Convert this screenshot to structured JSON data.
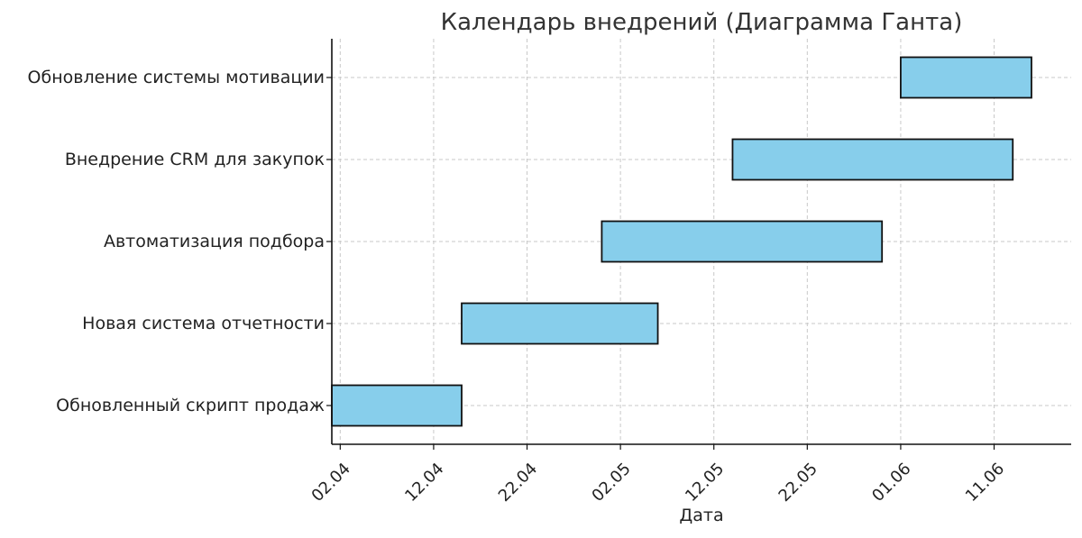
{
  "chart_data": {
    "type": "gantt",
    "title": "Календарь внедрений (Диаграмма Ганта)",
    "xlabel": "Дата",
    "ylabel": "",
    "bar_color": "#87ceeb",
    "bar_edge_color": "#111111",
    "grid": true,
    "x_axis": {
      "type": "date",
      "range": [
        "2024-04-01",
        "2024-06-18"
      ],
      "ticks": [
        {
          "date": "2024-04-02",
          "label": "02.04"
        },
        {
          "date": "2024-04-12",
          "label": "12.04"
        },
        {
          "date": "2024-04-22",
          "label": "22.04"
        },
        {
          "date": "2024-05-02",
          "label": "02.05"
        },
        {
          "date": "2024-05-12",
          "label": "12.05"
        },
        {
          "date": "2024-05-22",
          "label": "22.05"
        },
        {
          "date": "2024-06-01",
          "label": "01.06"
        },
        {
          "date": "2024-06-11",
          "label": "11.06"
        }
      ]
    },
    "tasks": [
      {
        "name": "Обновленный скрипт продаж",
        "start": "2024-04-01",
        "end": "2024-04-15"
      },
      {
        "name": "Новая система отчетности",
        "start": "2024-04-15",
        "end": "2024-05-06"
      },
      {
        "name": "Автоматизация подбора",
        "start": "2024-04-30",
        "end": "2024-05-30"
      },
      {
        "name": "Внедрение CRM для закупок",
        "start": "2024-05-14",
        "end": "2024-06-13"
      },
      {
        "name": "Обновление системы мотивации",
        "start": "2024-06-01",
        "end": "2024-06-15"
      }
    ]
  }
}
